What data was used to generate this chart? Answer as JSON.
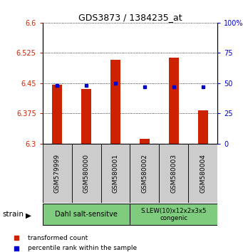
{
  "title": "GDS3873 / 1384235_at",
  "samples": [
    "GSM579999",
    "GSM580000",
    "GSM580001",
    "GSM580002",
    "GSM580003",
    "GSM580004"
  ],
  "red_values": [
    6.447,
    6.435,
    6.508,
    6.312,
    6.513,
    6.383
  ],
  "blue_values": [
    48,
    48,
    50,
    47,
    47,
    47
  ],
  "bar_bottom": 6.3,
  "ylim_left": [
    6.3,
    6.6
  ],
  "ylim_right": [
    0,
    100
  ],
  "yticks_left": [
    6.3,
    6.375,
    6.45,
    6.525,
    6.6
  ],
  "yticks_right": [
    0,
    25,
    50,
    75,
    100
  ],
  "ytick_labels_left": [
    "6.3",
    "6.375",
    "6.45",
    "6.525",
    "6.6"
  ],
  "ytick_labels_right": [
    "0",
    "25",
    "50",
    "75",
    "100%"
  ],
  "group1_label": "Dahl salt-sensitve",
  "group2_label": "S.LEW(10)x12x2x3x5\ncongenic",
  "group1_samples": [
    0,
    1,
    2
  ],
  "group2_samples": [
    3,
    4,
    5
  ],
  "group_color": "#7FCC7F",
  "bar_color": "#CC2200",
  "dot_color": "#0000CC",
  "left_tick_color": "#CC2200",
  "right_tick_color": "#0000CC",
  "strain_label": "strain",
  "legend_red": "transformed count",
  "legend_blue": "percentile rank within the sample",
  "bg_color": "#ffffff",
  "tick_area_bg": "#cccccc",
  "bar_width": 0.35
}
